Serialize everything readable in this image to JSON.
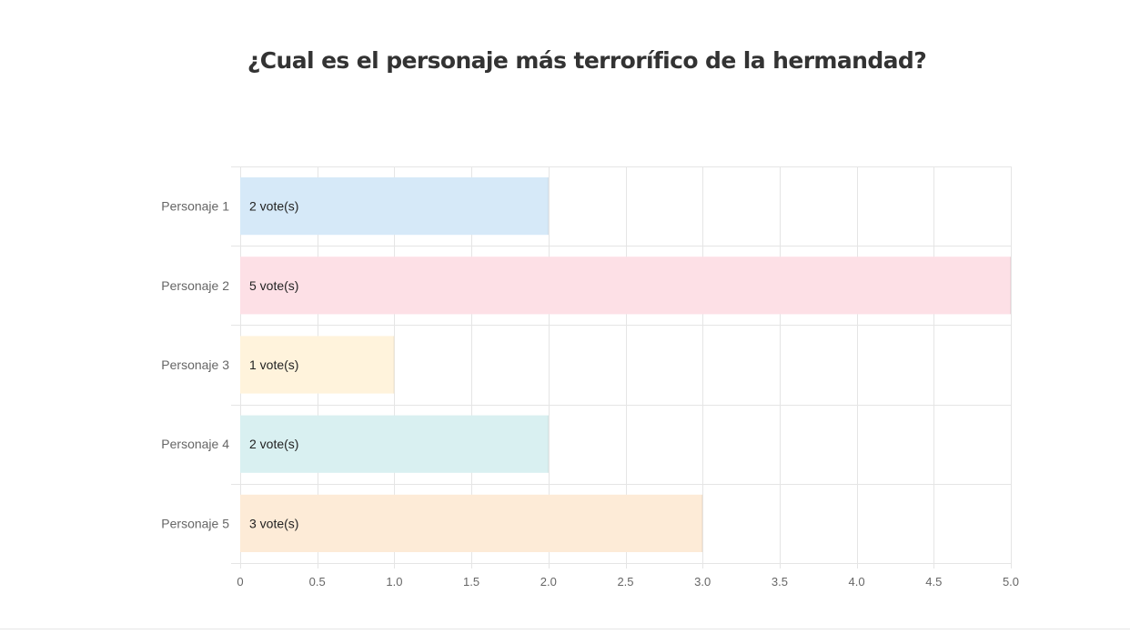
{
  "chart_data": {
    "type": "bar",
    "orientation": "horizontal",
    "title": "¿Cual es el personaje más terrorífico de la hermandad?",
    "categories": [
      "Personaje 1",
      "Personaje 2",
      "Personaje 3",
      "Personaje 4",
      "Personaje 5"
    ],
    "values": [
      2,
      5,
      1,
      2,
      3
    ],
    "bar_labels": [
      "2 vote(s)",
      "5 vote(s)",
      "1 vote(s)",
      "2 vote(s)",
      "3 vote(s)"
    ],
    "colors": [
      "#d6e9f8",
      "#fde0e6",
      "#fff3dc",
      "#d9f0f1",
      "#fdebd7"
    ],
    "xlim": [
      0,
      5
    ],
    "x_ticks": [
      "0",
      "0.5",
      "1.0",
      "1.5",
      "2.0",
      "2.5",
      "3.0",
      "3.5",
      "4.0",
      "4.5",
      "5.0"
    ],
    "x_tick_values": [
      0,
      0.5,
      1,
      1.5,
      2,
      2.5,
      3,
      3.5,
      4,
      4.5,
      5
    ],
    "grid": true,
    "legend": "none",
    "xlabel": "",
    "ylabel": ""
  }
}
